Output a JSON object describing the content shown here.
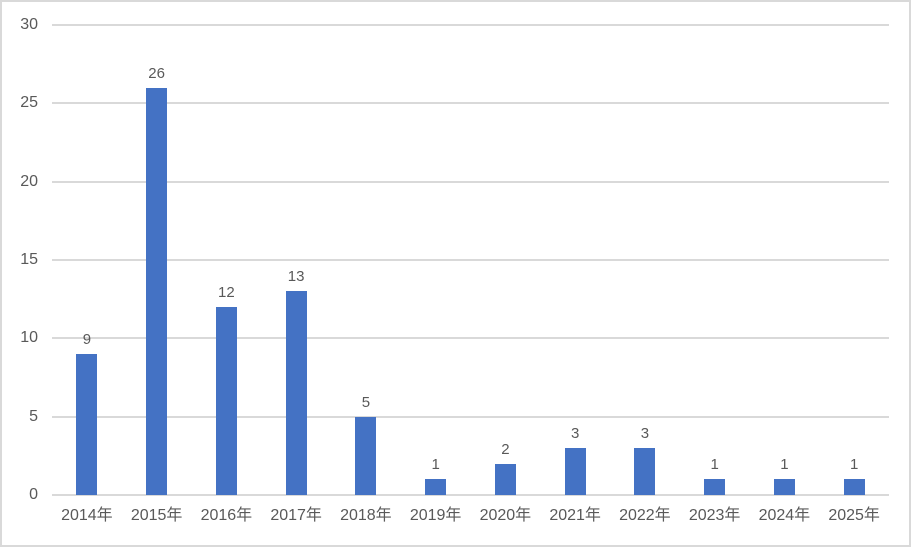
{
  "chart_data": {
    "type": "bar",
    "title": "",
    "categories": [
      "2014年",
      "2015年",
      "2016年",
      "2017年",
      "2018年",
      "2019年",
      "2020年",
      "2021年",
      "2022年",
      "2023年",
      "2024年",
      "2025年"
    ],
    "values": [
      9,
      26,
      12,
      13,
      5,
      1,
      2,
      3,
      3,
      1,
      1,
      1
    ],
    "data_labels": [
      "9",
      "26",
      "12",
      "13",
      "5",
      "1",
      "2",
      "3",
      "3",
      "1",
      "1",
      "1"
    ],
    "xlabel": "",
    "ylabel": "",
    "ylim": [
      0,
      30
    ],
    "y_ticks": [
      0,
      5,
      10,
      15,
      20,
      25,
      30
    ],
    "grid": "horizontal",
    "legend": "none",
    "colors": {
      "bar": "#4472C4",
      "gridline": "#D9D9D9",
      "axis_line": "#D9D9D9",
      "text": "#595959",
      "frame_border": "#D9D9D9",
      "background": "#FFFFFF"
    }
  }
}
